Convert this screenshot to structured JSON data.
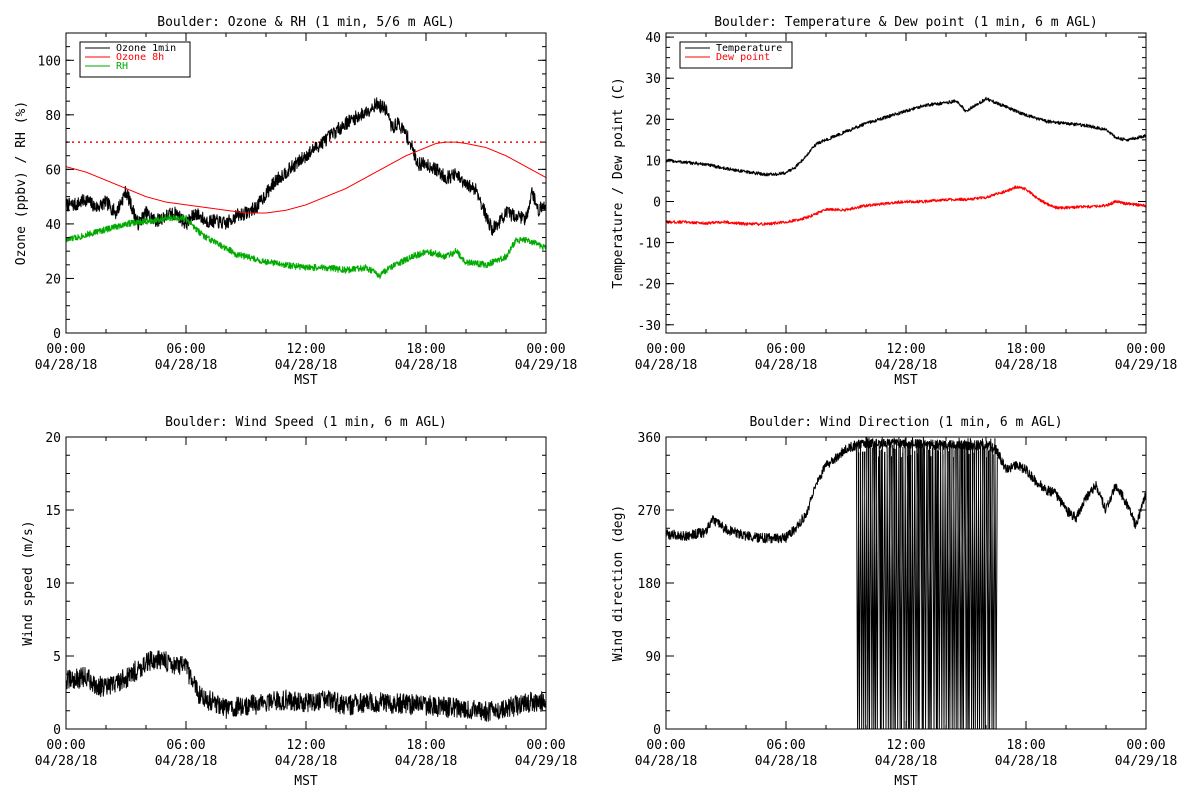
{
  "chart_data": [
    {
      "type": "line",
      "title": "Boulder: Ozone & RH (1 min, 5/6 m AGL)",
      "ylabel": "Ozone (ppbv) / RH (%)",
      "xlabel": "MST",
      "xlim": [
        0,
        24
      ],
      "ylim": [
        0,
        110
      ],
      "yticks": [
        0,
        20,
        40,
        60,
        80,
        100
      ],
      "xticks": [
        {
          "value": 0,
          "time": "00:00",
          "date": "04/28/18"
        },
        {
          "value": 6,
          "time": "06:00",
          "date": "04/28/18"
        },
        {
          "value": 12,
          "time": "12:00",
          "date": "04/28/18"
        },
        {
          "value": 18,
          "time": "18:00",
          "date": "04/28/18"
        },
        {
          "value": 24,
          "time": "00:00",
          "date": "04/29/18"
        }
      ],
      "legend": {
        "position": "top-left",
        "boxed": true
      },
      "reference_lines": [
        {
          "y": 70,
          "color": "#ff0000",
          "style": "dotted"
        }
      ],
      "series": [
        {
          "name": "Ozone 1min",
          "color": "#000000",
          "noise": 2.5,
          "x": [
            0,
            0.5,
            1,
            1.5,
            2,
            2.5,
            3,
            3.3,
            3.6,
            4,
            4.5,
            5,
            5.5,
            6,
            6.5,
            7,
            7.5,
            8,
            8.5,
            9,
            9.5,
            10,
            10.5,
            11,
            11.5,
            12,
            12.5,
            13,
            13.5,
            14,
            14.5,
            15,
            15.5,
            16,
            16.3,
            16.6,
            17,
            17.3,
            17.6,
            18,
            18.5,
            19,
            19.5,
            20,
            20.5,
            21,
            21.3,
            21.6,
            22,
            22.5,
            23,
            23.3,
            23.6,
            24
          ],
          "y": [
            47,
            47,
            49,
            46,
            48,
            44,
            52,
            46,
            40,
            44,
            41,
            43,
            44,
            40,
            44,
            41,
            41,
            40,
            43,
            44,
            46,
            51,
            56,
            59,
            62,
            65,
            68,
            71,
            74,
            77,
            79,
            81,
            84,
            82,
            75,
            77,
            73,
            68,
            62,
            62,
            60,
            57,
            58,
            54,
            53,
            43,
            38,
            40,
            44,
            43,
            42,
            52,
            45,
            47
          ]
        },
        {
          "name": "Ozone 8h",
          "color": "#ff0000",
          "noise": 0,
          "x": [
            0,
            1,
            2,
            3,
            4,
            5,
            6,
            7,
            8,
            9,
            10,
            11,
            12,
            13,
            14,
            15,
            16,
            17,
            18,
            18.5,
            19,
            19.5,
            20,
            21,
            22,
            23,
            24
          ],
          "y": [
            61,
            59,
            56,
            53,
            50,
            48,
            47,
            46,
            45,
            44,
            44,
            45,
            47,
            50,
            53,
            57,
            61,
            65,
            68,
            69.5,
            70,
            70,
            69.5,
            68,
            65,
            61,
            57
          ]
        },
        {
          "name": "RH",
          "color": "#00aa00",
          "noise": 1.2,
          "x": [
            0,
            1,
            2,
            3,
            4,
            5,
            6,
            6.5,
            7,
            7.5,
            8,
            8.5,
            9,
            10,
            11,
            12,
            13,
            14,
            15,
            15.7,
            16,
            17,
            18,
            19,
            19.5,
            20,
            21,
            22,
            22.5,
            23,
            23.5,
            24
          ],
          "y": [
            34,
            36,
            38,
            40,
            41,
            42,
            42,
            38,
            35,
            33,
            31,
            29,
            28,
            26,
            25,
            24,
            24,
            23,
            24,
            21,
            23,
            27,
            30,
            28,
            30,
            26,
            25,
            28,
            34,
            34,
            33,
            31
          ]
        }
      ]
    },
    {
      "type": "line",
      "title": "Boulder: Temperature & Dew point (1 min, 6 m AGL)",
      "ylabel": "Temperature / Dew point (C)",
      "xlabel": "MST",
      "xlim": [
        0,
        24
      ],
      "ylim": [
        -32,
        41
      ],
      "yticks": [
        -30,
        -20,
        -10,
        0,
        10,
        20,
        30,
        40
      ],
      "xticks": [
        {
          "value": 0,
          "time": "00:00",
          "date": "04/28/18"
        },
        {
          "value": 6,
          "time": "06:00",
          "date": "04/28/18"
        },
        {
          "value": 12,
          "time": "12:00",
          "date": "04/28/18"
        },
        {
          "value": 18,
          "time": "18:00",
          "date": "04/28/18"
        },
        {
          "value": 24,
          "time": "00:00",
          "date": "04/29/18"
        }
      ],
      "legend": {
        "position": "top-left",
        "boxed": true
      },
      "series": [
        {
          "name": "Temperature",
          "color": "#000000",
          "noise": 0.4,
          "x": [
            0,
            1,
            2,
            3,
            4,
            5,
            5.5,
            6,
            6.5,
            7,
            7.5,
            8,
            9,
            10,
            11,
            12,
            13,
            14,
            14.5,
            15,
            15.5,
            16,
            16.5,
            17,
            18,
            19,
            20,
            21,
            22,
            22.5,
            23,
            23.5,
            24
          ],
          "y": [
            10,
            9.5,
            9,
            8,
            7.2,
            6.6,
            6.6,
            7,
            8.5,
            11,
            14,
            15,
            17,
            19,
            20.5,
            22,
            23.5,
            24,
            24.5,
            22,
            23.5,
            25,
            24,
            23,
            21,
            19.5,
            19,
            18.5,
            17.5,
            15.5,
            15,
            15.5,
            16
          ]
        },
        {
          "name": "Dew point",
          "color": "#ff0000",
          "noise": 0.35,
          "x": [
            0,
            1,
            2,
            3,
            4,
            5,
            6,
            7,
            8,
            9,
            10,
            11,
            12,
            13,
            14,
            15,
            16,
            17,
            17.5,
            18,
            18.5,
            19,
            19.5,
            20,
            21,
            22,
            22.5,
            23,
            24
          ],
          "y": [
            -5,
            -5,
            -5.3,
            -5,
            -5.5,
            -5.5,
            -5,
            -4,
            -2,
            -2,
            -1,
            -0.5,
            0,
            0,
            0.5,
            0.5,
            1,
            2.5,
            3.5,
            3,
            1,
            -0.5,
            -1.5,
            -1.5,
            -1.3,
            -1,
            0,
            -0.5,
            -1
          ]
        }
      ]
    },
    {
      "type": "line",
      "title": "Boulder: Wind Speed (1 min, 6 m AGL)",
      "ylabel": "Wind speed (m/s)",
      "xlabel": "MST",
      "xlim": [
        0,
        24
      ],
      "ylim": [
        0,
        20
      ],
      "yticks": [
        0,
        5,
        10,
        15,
        20
      ],
      "xticks": [
        {
          "value": 0,
          "time": "00:00",
          "date": "04/28/18"
        },
        {
          "value": 6,
          "time": "06:00",
          "date": "04/28/18"
        },
        {
          "value": 12,
          "time": "12:00",
          "date": "04/28/18"
        },
        {
          "value": 18,
          "time": "18:00",
          "date": "04/28/18"
        },
        {
          "value": 24,
          "time": "00:00",
          "date": "04/29/18"
        }
      ],
      "series": [
        {
          "name": "",
          "color": "#000000",
          "noise": 0.7,
          "x": [
            0,
            0.5,
            1,
            1.5,
            2,
            2.5,
            3,
            3.5,
            4,
            4.5,
            5,
            5.5,
            6,
            6.3,
            6.6,
            7,
            7.5,
            8,
            9,
            10,
            11,
            12,
            13,
            14,
            15,
            16,
            17,
            18,
            19,
            20,
            21,
            22,
            23,
            24
          ],
          "y": [
            3.3,
            3.4,
            3.6,
            3,
            2.8,
            3.2,
            3.5,
            4,
            4.5,
            4.8,
            4.6,
            4.4,
            4.2,
            3.3,
            2.5,
            2,
            1.8,
            1.4,
            1.6,
            1.8,
            2,
            1.8,
            2,
            1.6,
            1.8,
            1.8,
            1.7,
            1.6,
            1.5,
            1.3,
            1.2,
            1.4,
            1.8,
            1.9
          ]
        }
      ]
    },
    {
      "type": "line",
      "title": "Boulder: Wind Direction (1 min, 6 m AGL)",
      "ylabel": "Wind direction (deg)",
      "xlabel": "MST",
      "xlim": [
        0,
        24
      ],
      "ylim": [
        0,
        360
      ],
      "yticks": [
        0,
        90,
        180,
        270,
        360
      ],
      "xticks": [
        {
          "value": 0,
          "time": "00:00",
          "date": "04/28/18"
        },
        {
          "value": 6,
          "time": "06:00",
          "date": "04/28/18"
        },
        {
          "value": 12,
          "time": "12:00",
          "date": "04/28/18"
        },
        {
          "value": 18,
          "time": "18:00",
          "date": "04/28/18"
        },
        {
          "value": 24,
          "time": "00:00",
          "date": "04/29/18"
        }
      ],
      "series": [
        {
          "name": "",
          "color": "#000000",
          "noise": 6,
          "x": [
            0,
            1,
            2,
            2.3,
            3,
            4,
            5,
            6,
            6.5,
            7,
            7.5,
            8,
            8.5,
            9,
            9.5,
            10,
            12,
            14,
            16,
            16.5,
            17,
            17.5,
            18,
            18.5,
            19,
            19.5,
            20,
            20.5,
            21,
            21.5,
            22,
            22.5,
            23,
            23.5,
            24
          ],
          "y": [
            240,
            238,
            243,
            258,
            246,
            238,
            235,
            236,
            248,
            265,
            300,
            325,
            335,
            345,
            350,
            352,
            352,
            350,
            350,
            345,
            320,
            325,
            320,
            305,
            295,
            290,
            270,
            260,
            285,
            300,
            270,
            300,
            280,
            250,
            290
          ]
        },
        {
          "name": "",
          "color": "#000000",
          "noise": 0,
          "wrap": true,
          "start": 9.5,
          "end": 16.5,
          "count": 70
        }
      ]
    }
  ]
}
